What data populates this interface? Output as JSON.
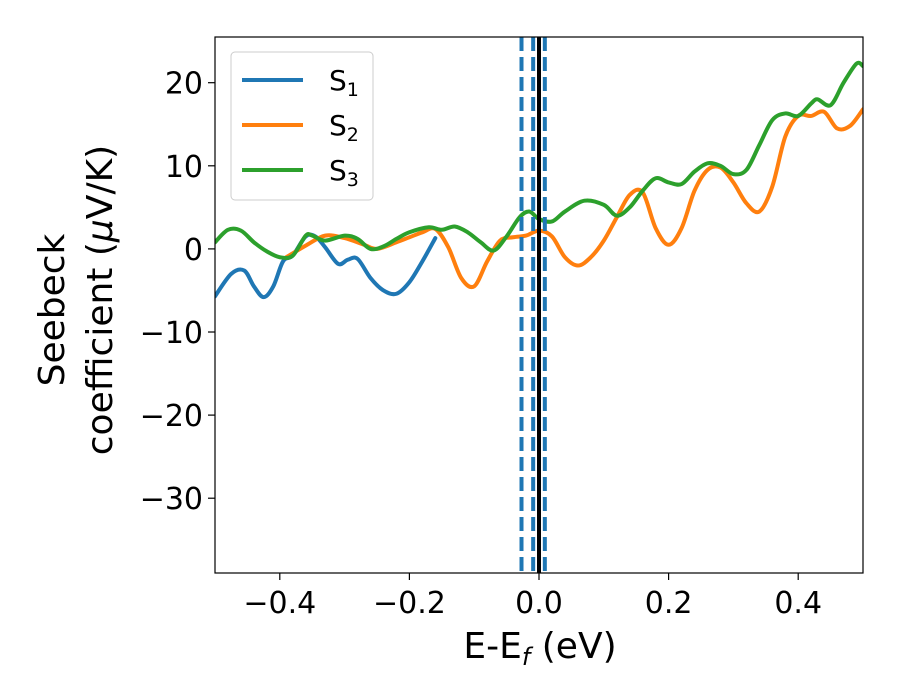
{
  "chart_data": {
    "type": "line",
    "xlabel": "E-E",
    "xlabel_sub": "f",
    "xlabel_unit": " (eV)",
    "ylabel_line1": "Seebeck",
    "ylabel_line2": "coefficient  (",
    "ylabel_mu": "μ",
    "ylabel_unit": "V/K)",
    "xlim": [
      -0.5,
      0.5
    ],
    "ylim": [
      -39,
      25.5
    ],
    "xticks": [
      -0.4,
      -0.2,
      0.0,
      0.2,
      0.4
    ],
    "xtick_labels": [
      "−0.4",
      "−0.2",
      "0.0",
      "0.2",
      "0.4"
    ],
    "yticks": [
      -30,
      -20,
      -10,
      0,
      10,
      20
    ],
    "ytick_labels": [
      "−30",
      "−20",
      "−10",
      "0",
      "10",
      "20"
    ],
    "grid": false,
    "legend_position": "top-left",
    "legend": [
      {
        "label": "S",
        "sub": "1",
        "color": "#1f77b4"
      },
      {
        "label": "S",
        "sub": "2",
        "color": "#ff7f0e"
      },
      {
        "label": "S",
        "sub": "3",
        "color": "#2ca02c"
      }
    ],
    "vlines": [
      {
        "x": 0.0,
        "style": "solid",
        "color": "#000000"
      },
      {
        "x": -0.027,
        "style": "dashed",
        "color": "#1f77b4"
      },
      {
        "x": -0.009,
        "style": "dashed",
        "color": "#1f77b4"
      },
      {
        "x": 0.009,
        "style": "dashed",
        "color": "#1f77b4"
      }
    ],
    "series": [
      {
        "name": "S1",
        "color": "#1f77b4",
        "x": [
          -0.5,
          -0.475,
          -0.455,
          -0.44,
          -0.425,
          -0.41,
          -0.395,
          -0.38,
          -0.36,
          -0.345,
          -0.33,
          -0.31,
          -0.295,
          -0.28,
          -0.26,
          -0.24,
          -0.22,
          -0.2,
          -0.18,
          -0.16
        ],
        "y": [
          -5.7,
          -3.0,
          -2.6,
          -4.5,
          -5.8,
          -4.5,
          -1.5,
          -0.8,
          1.5,
          1.5,
          0.2,
          -1.8,
          -1.3,
          -1.2,
          -3.5,
          -5.0,
          -5.4,
          -4.0,
          -1.5,
          1.3
        ]
      },
      {
        "name": "S2",
        "color": "#ff7f0e",
        "x": [
          -0.39,
          -0.36,
          -0.33,
          -0.3,
          -0.27,
          -0.25,
          -0.22,
          -0.2,
          -0.18,
          -0.16,
          -0.14,
          -0.12,
          -0.1,
          -0.08,
          -0.06,
          -0.04,
          -0.02,
          0.0,
          0.02,
          0.04,
          0.06,
          0.08,
          0.1,
          0.12,
          0.14,
          0.16,
          0.18,
          0.2,
          0.22,
          0.24,
          0.26,
          0.28,
          0.3,
          0.32,
          0.34,
          0.36,
          0.38,
          0.4,
          0.42,
          0.44,
          0.46,
          0.48,
          0.5
        ],
        "y": [
          -1.0,
          0.4,
          1.6,
          1.3,
          0.5,
          0.0,
          0.8,
          1.4,
          2.0,
          2.4,
          0.2,
          -3.5,
          -4.5,
          -1.5,
          1.0,
          1.4,
          1.6,
          2.2,
          1.5,
          -1.0,
          -2.0,
          -1.0,
          1.0,
          3.8,
          6.5,
          6.8,
          2.5,
          0.5,
          2.5,
          7.0,
          9.5,
          9.8,
          8.0,
          5.5,
          4.5,
          7.5,
          13.5,
          16.0,
          16.0,
          16.5,
          14.5,
          14.8,
          16.8
        ]
      },
      {
        "name": "S3",
        "color": "#2ca02c",
        "x": [
          -0.5,
          -0.48,
          -0.46,
          -0.44,
          -0.42,
          -0.4,
          -0.38,
          -0.36,
          -0.35,
          -0.33,
          -0.3,
          -0.28,
          -0.26,
          -0.24,
          -0.22,
          -0.2,
          -0.17,
          -0.15,
          -0.13,
          -0.11,
          -0.09,
          -0.07,
          -0.05,
          -0.03,
          -0.015,
          0.0,
          0.02,
          0.04,
          0.07,
          0.1,
          0.12,
          0.14,
          0.16,
          0.18,
          0.2,
          0.22,
          0.24,
          0.26,
          0.28,
          0.3,
          0.32,
          0.34,
          0.36,
          0.38,
          0.4,
          0.42,
          0.43,
          0.45,
          0.47,
          0.49,
          0.5
        ],
        "y": [
          0.8,
          2.3,
          2.2,
          0.8,
          -0.3,
          -1.0,
          -0.8,
          1.6,
          1.6,
          1.0,
          1.6,
          1.2,
          0.0,
          0.3,
          1.2,
          2.0,
          2.6,
          2.3,
          2.7,
          2.0,
          0.8,
          -0.2,
          1.5,
          3.8,
          4.5,
          3.6,
          3.3,
          4.5,
          5.8,
          5.3,
          4.0,
          5.0,
          7.0,
          8.5,
          8.0,
          7.8,
          9.3,
          10.3,
          10.0,
          9.0,
          9.5,
          12.5,
          15.5,
          16.3,
          16.0,
          17.5,
          18.0,
          17.3,
          20.0,
          22.3,
          22.0
        ]
      }
    ]
  }
}
